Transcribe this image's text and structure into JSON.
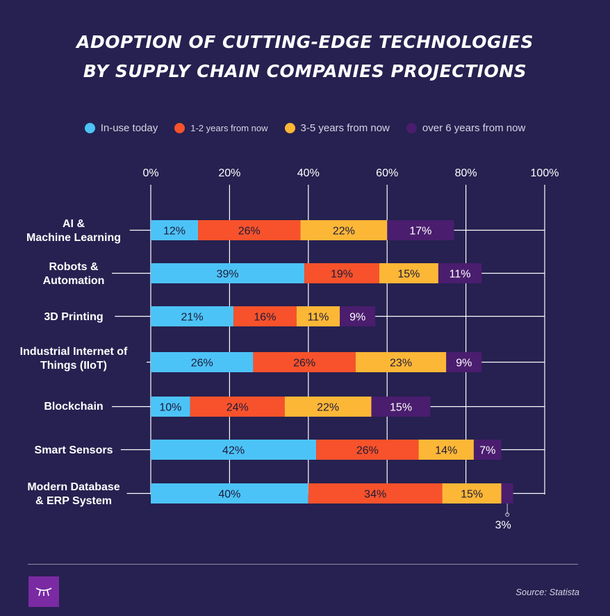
{
  "chart_data": {
    "type": "bar",
    "orientation": "horizontal",
    "stacked": true,
    "title_lines": [
      "ADOPTION OF CUTTING-EDGE TECHNOLOGIES",
      "BY SUPPLY CHAIN COMPANIES PROJECTIONS"
    ],
    "categories": [
      [
        "AI &",
        "Machine Learning"
      ],
      [
        "Robots &",
        "Automation"
      ],
      [
        "3D Printing"
      ],
      [
        "Industrial Internet of",
        "Things (IIoT)"
      ],
      [
        "Blockchain"
      ],
      [
        "Smart Sensors"
      ],
      [
        "Modern Database",
        "& ERP System"
      ]
    ],
    "series": [
      {
        "name": "In-use today",
        "color": "#4cc3f7",
        "values": [
          12,
          39,
          21,
          26,
          10,
          42,
          40
        ],
        "labels": [
          "12%",
          "39%",
          "21%",
          "26%",
          "10%",
          "42%",
          "40%"
        ]
      },
      {
        "name": "1-2 years from now",
        "color": "#f7522b",
        "values": [
          26,
          19,
          16,
          26,
          24,
          26,
          34
        ],
        "labels": [
          "26%",
          "19%",
          "16%",
          "26%",
          "24%",
          "26%",
          "34%"
        ]
      },
      {
        "name": "3-5 years from now",
        "color": "#fdb737",
        "values": [
          22,
          15,
          11,
          23,
          22,
          14,
          15
        ],
        "labels": [
          "22%",
          "15%",
          "11%",
          "23%",
          "22%",
          "14%",
          "15%"
        ]
      },
      {
        "name": "over 6 years from now",
        "color": "#4a1d6e",
        "values": [
          17,
          11,
          9,
          9,
          15,
          7,
          3
        ],
        "labels": [
          "17%",
          "11%",
          "9%",
          "9%",
          "15%",
          "7%",
          "3%"
        ]
      }
    ],
    "xlim": [
      0,
      100
    ],
    "xticks": [
      "0%",
      "20%",
      "40%",
      "60%",
      "80%",
      "100%"
    ],
    "grid": true,
    "legend_position": "top",
    "source": "Source: Statista"
  }
}
